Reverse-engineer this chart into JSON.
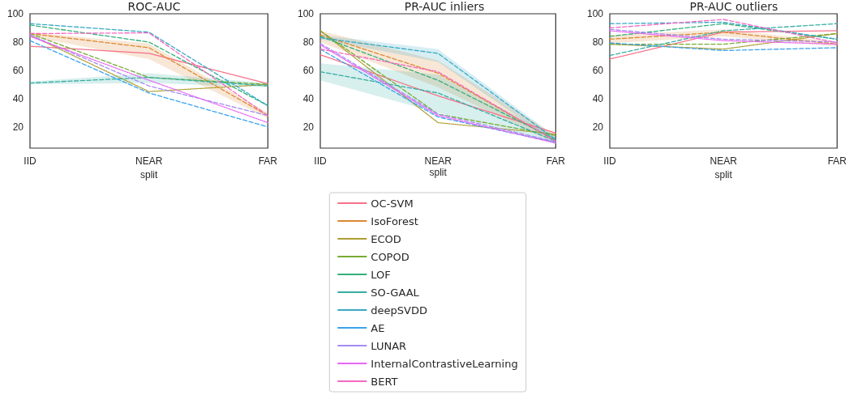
{
  "chart_data": [
    {
      "type": "line",
      "title": "ROC-AUC",
      "xlabel": "split",
      "categories": [
        "IID",
        "NEAR",
        "FAR"
      ],
      "ylim": [
        5,
        100
      ],
      "yticks": [
        20,
        40,
        60,
        80,
        100
      ],
      "grid": false,
      "marker": "none",
      "series": [
        {
          "color": "#f77189",
          "line_style": "solid",
          "values": [
            77,
            72,
            50.5
          ]
        },
        {
          "color": "#dc8932",
          "line_style": "dashed",
          "values": [
            86,
            76,
            28
          ],
          "lower": [
            84,
            68,
            26
          ],
          "upper": [
            87,
            79,
            30
          ]
        },
        {
          "color": "#ae9d31",
          "line_style": "dotted",
          "values": [
            85,
            45,
            50
          ]
        },
        {
          "color": "#77ab31",
          "line_style": "dashed",
          "values": [
            86,
            55,
            50
          ]
        },
        {
          "color": "#33b07a",
          "line_style": "dashed",
          "values": [
            92,
            80,
            35
          ]
        },
        {
          "color": "#36ada4",
          "line_style": "dashed",
          "values": [
            51,
            55,
            49
          ],
          "lower": [
            50,
            51,
            48
          ],
          "upper": [
            52,
            58,
            51
          ]
        },
        {
          "color": "#38a9c5",
          "line_style": "dashed",
          "values": [
            93,
            87,
            35
          ]
        },
        {
          "color": "#3ba3ec",
          "line_style": "dashed",
          "values": [
            81,
            44,
            20
          ]
        },
        {
          "color": "#a48cf4",
          "line_style": "dashed",
          "values": [
            85,
            49,
            28
          ]
        },
        {
          "color": "#e866f4",
          "line_style": "dotted",
          "values": [
            84,
            53,
            23
          ]
        },
        {
          "color": "#f668c2",
          "line_style": "dashed",
          "values": [
            86,
            86.5,
            28
          ]
        }
      ]
    },
    {
      "type": "line",
      "title": "PR-AUC inliers",
      "xlabel": "split",
      "categories": [
        "IID",
        "NEAR",
        "FAR"
      ],
      "ylim": [
        5,
        100
      ],
      "yticks": [
        20,
        40,
        60,
        80,
        100
      ],
      "grid": false,
      "legend": "bottom",
      "marker": "none",
      "series": [
        {
          "name": "OC-SVM",
          "color": "#f77189",
          "line_style": "solid",
          "values": [
            71,
            42,
            15.6
          ]
        },
        {
          "name": "IsoForest",
          "color": "#dc8932",
          "line_style": "dashed",
          "values": [
            85,
            58,
            10
          ],
          "lower": [
            80,
            48,
            8
          ],
          "upper": [
            88,
            67,
            14
          ]
        },
        {
          "name": "ECOD",
          "color": "#ae9d31",
          "line_style": "dotted",
          "values": [
            88,
            23,
            15
          ]
        },
        {
          "name": "COPOD",
          "color": "#77ab31",
          "line_style": "dashed",
          "values": [
            88,
            29,
            14
          ]
        },
        {
          "name": "LOF",
          "color": "#33b07a",
          "line_style": "dashed",
          "values": [
            84,
            53,
            11
          ]
        },
        {
          "name": "SO-GAAL",
          "color": "#36ada4",
          "line_style": "dashed",
          "values": [
            59,
            44,
            10
          ],
          "lower": [
            53,
            30,
            8
          ],
          "upper": [
            65,
            57,
            13
          ]
        },
        {
          "name": "deepSVDD",
          "color": "#38a9c5",
          "line_style": "dashed",
          "values": [
            83,
            72,
            11
          ],
          "lower": [
            82,
            66,
            9
          ],
          "upper": [
            85,
            75,
            13
          ]
        },
        {
          "name": "AE",
          "color": "#3ba3ec",
          "line_style": "dashed",
          "values": [
            75,
            27,
            9
          ]
        },
        {
          "name": "LUNAR",
          "color": "#a48cf4",
          "line_style": "dashed",
          "values": [
            79,
            29,
            9.5
          ]
        },
        {
          "name": "InternalContrastiveLearning",
          "color": "#e866f4",
          "line_style": "dotted",
          "values": [
            78,
            28,
            8.6
          ]
        },
        {
          "name": "BERT",
          "color": "#f668c2",
          "line_style": "dashed",
          "values": [
            75,
            59,
            10
          ]
        }
      ]
    },
    {
      "type": "line",
      "title": "PR-AUC outliers",
      "xlabel": "split",
      "categories": [
        "IID",
        "NEAR",
        "FAR"
      ],
      "ylim": [
        5,
        100
      ],
      "yticks": [
        20,
        40,
        60,
        80,
        100
      ],
      "grid": false,
      "marker": "none",
      "series": [
        {
          "color": "#f77189",
          "line_style": "solid",
          "values": [
            68,
            87,
            88
          ]
        },
        {
          "color": "#dc8932",
          "line_style": "dashed",
          "values": [
            82,
            87,
            78.5
          ],
          "lower": [
            79,
            84,
            77
          ],
          "upper": [
            85,
            89,
            80
          ]
        },
        {
          "color": "#ae9d31",
          "line_style": "dotted",
          "values": [
            78.5,
            75,
            86
          ]
        },
        {
          "color": "#77ab31",
          "line_style": "dashed",
          "values": [
            78.5,
            78.5,
            86
          ]
        },
        {
          "color": "#33b07a",
          "line_style": "dashed",
          "values": [
            84,
            93,
            82
          ]
        },
        {
          "color": "#36ada4",
          "line_style": "dashed",
          "values": [
            70.5,
            88,
            93
          ]
        },
        {
          "color": "#38a9c5",
          "line_style": "dashed",
          "values": [
            93,
            94,
            82
          ]
        },
        {
          "color": "#3ba3ec",
          "line_style": "dashed",
          "values": [
            79.4,
            74,
            76
          ]
        },
        {
          "color": "#a48cf4",
          "line_style": "dashed",
          "values": [
            89,
            82,
            80
          ]
        },
        {
          "color": "#e866f4",
          "line_style": "dotted",
          "values": [
            88,
            81,
            78.5
          ]
        },
        {
          "color": "#f668c2",
          "line_style": "dashed",
          "values": [
            90,
            96,
            79.5
          ]
        }
      ]
    }
  ]
}
